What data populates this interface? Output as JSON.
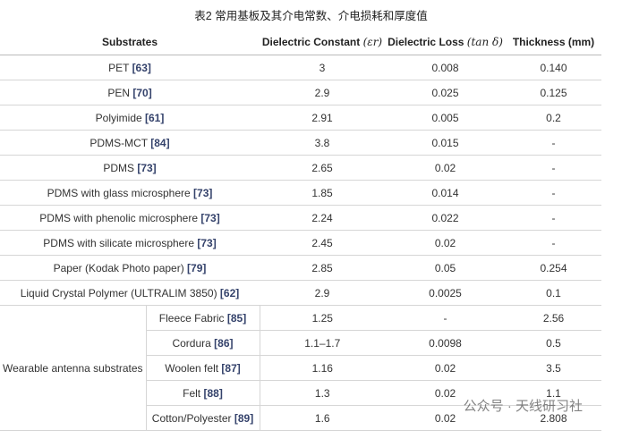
{
  "title": "表2 常用基板及其介电常数、介电损耗和厚度值",
  "table": {
    "header": [
      {
        "text": "Substrates"
      },
      {
        "text": "Dielectric Constant",
        "math": "(εr)"
      },
      {
        "text": "Dielectric Loss",
        "math": "(tan δ)"
      },
      {
        "text": "Thickness (mm)"
      }
    ],
    "rows": [
      {
        "name": "PET",
        "ref": "[63]",
        "values": [
          "3",
          "0.008",
          "0.140"
        ]
      },
      {
        "name": "PEN",
        "ref": "[70]",
        "values": [
          "2.9",
          "0.025",
          "0.125"
        ]
      },
      {
        "name": "Polyimide",
        "ref": "[61]",
        "values": [
          "2.91",
          "0.005",
          "0.2"
        ]
      },
      {
        "name": "PDMS-MCT",
        "ref": "[84]",
        "values": [
          "3.8",
          "0.015",
          "-"
        ]
      },
      {
        "name": "PDMS",
        "ref": "[73]",
        "values": [
          "2.65",
          "0.02",
          "-"
        ]
      },
      {
        "name": "PDMS with glass microsphere",
        "ref": "[73]",
        "values": [
          "1.85",
          "0.014",
          "-"
        ]
      },
      {
        "name": "PDMS with phenolic microsphere",
        "ref": "[73]",
        "values": [
          "2.24",
          "0.022",
          "-"
        ]
      },
      {
        "name": "PDMS with silicate microsphere",
        "ref": "[73]",
        "values": [
          "2.45",
          "0.02",
          "-"
        ]
      },
      {
        "name": "Paper (Kodak Photo paper)",
        "ref": "[79]",
        "values": [
          "2.85",
          "0.05",
          "0.254"
        ]
      },
      {
        "name": "Liquid Crystal Polymer (ULTRALIM 3850)",
        "ref": "[62]",
        "values": [
          "2.9",
          "0.0025",
          "0.1"
        ]
      }
    ],
    "group": {
      "label": "Wearable antenna substrates",
      "rows": [
        {
          "name": "Fleece Fabric",
          "ref": "[85]",
          "values": [
            "1.25",
            "-",
            "2.56"
          ]
        },
        {
          "name": "Cordura",
          "ref": "[86]",
          "values": [
            "1.1–1.7",
            "0.0098",
            "0.5"
          ]
        },
        {
          "name": "Woolen felt",
          "ref": "[87]",
          "values": [
            "1.16",
            "0.02",
            "3.5"
          ]
        },
        {
          "name": "Felt",
          "ref": "[88]",
          "values": [
            "1.3",
            "0.02",
            "1.1"
          ]
        },
        {
          "name": "Cotton/Polyester",
          "ref": "[89]",
          "values": [
            "1.6",
            "0.02",
            "2.808"
          ]
        }
      ]
    }
  },
  "watermark": "公众号 · 天线研习社"
}
